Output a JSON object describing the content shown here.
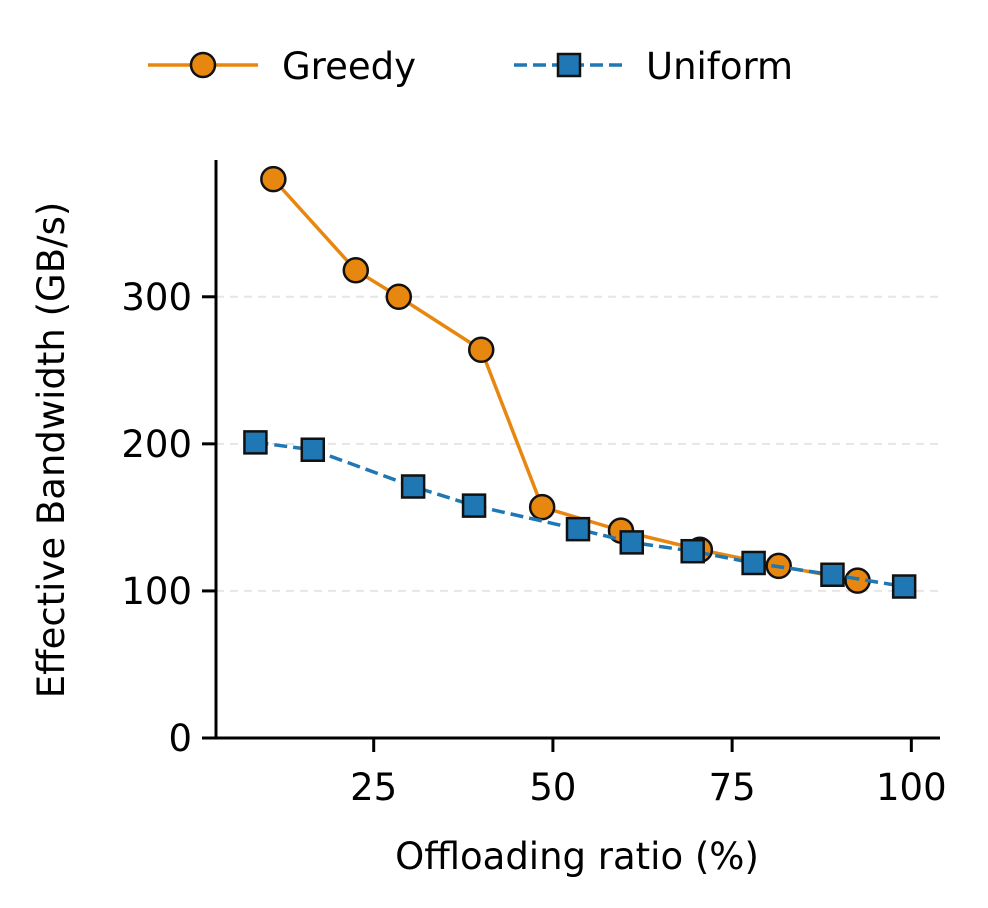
{
  "chart_data": {
    "type": "line",
    "title": "",
    "xlabel": "Offloading ratio (%)",
    "ylabel": "Effective Bandwidth (GB/s)",
    "xlim": [
      3,
      104
    ],
    "ylim": [
      0,
      393
    ],
    "xticks": [
      25,
      50,
      75,
      100
    ],
    "yticks": [
      0,
      100,
      200,
      300
    ],
    "grid": "horizontal dashed light",
    "legend_position": "top-center",
    "series": [
      {
        "name": "Greedy",
        "color": "#E8870F",
        "marker": "circle",
        "line_style": "solid",
        "points": [
          {
            "x": 11,
            "y": 380
          },
          {
            "x": 22.5,
            "y": 318
          },
          {
            "x": 28.5,
            "y": 300
          },
          {
            "x": 40,
            "y": 264
          },
          {
            "x": 48.5,
            "y": 157
          },
          {
            "x": 59.5,
            "y": 141
          },
          {
            "x": 70.5,
            "y": 128
          },
          {
            "x": 81.5,
            "y": 117
          },
          {
            "x": 92.5,
            "y": 107
          }
        ]
      },
      {
        "name": "Uniform",
        "color": "#1F77B4",
        "marker": "square",
        "line_style": "dashed",
        "points": [
          {
            "x": 8.5,
            "y": 201
          },
          {
            "x": 16.5,
            "y": 196
          },
          {
            "x": 30.5,
            "y": 171
          },
          {
            "x": 39,
            "y": 158
          },
          {
            "x": 53.5,
            "y": 142
          },
          {
            "x": 61,
            "y": 133
          },
          {
            "x": 69.5,
            "y": 127
          },
          {
            "x": 78,
            "y": 119
          },
          {
            "x": 89,
            "y": 111
          },
          {
            "x": 99,
            "y": 103
          }
        ]
      }
    ]
  }
}
